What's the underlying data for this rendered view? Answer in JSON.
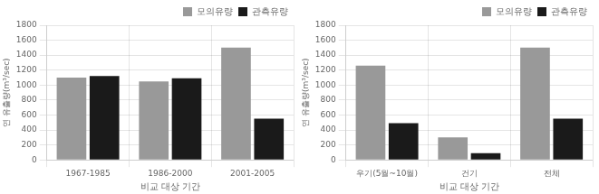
{
  "chart_data": [
    {
      "type": "bar",
      "categories": [
        "1967-1985",
        "1986-2000",
        "2001-2005"
      ],
      "series": [
        {
          "name": "모의유량",
          "color": "#999999",
          "values": [
            1100,
            1050,
            1500
          ]
        },
        {
          "name": "관측유량",
          "color": "#1a1a1a",
          "values": [
            1120,
            1090,
            550
          ]
        }
      ],
      "xlabel": "비교 대상 기간",
      "ylabel": "연 유출량(m³/sec)",
      "ylim": [
        0,
        1800
      ],
      "yticks": [
        0,
        200,
        400,
        600,
        800,
        1000,
        1200,
        1400,
        1600,
        1800
      ],
      "grid": true,
      "legend": "upper right"
    },
    {
      "type": "bar",
      "categories": [
        "우기(5월~10월)",
        "건기",
        "전체"
      ],
      "series": [
        {
          "name": "모의유량",
          "color": "#999999",
          "values": [
            1260,
            300,
            1500
          ]
        },
        {
          "name": "관측유량",
          "color": "#1a1a1a",
          "values": [
            490,
            90,
            550
          ]
        }
      ],
      "xlabel": "비교 대상 기간",
      "ylabel": "연 유출량(m³/sec)",
      "ylim": [
        0,
        1800
      ],
      "yticks": [
        0,
        200,
        400,
        600,
        800,
        1000,
        1200,
        1400,
        1600,
        1800
      ],
      "grid": true,
      "legend": "upper right"
    }
  ]
}
